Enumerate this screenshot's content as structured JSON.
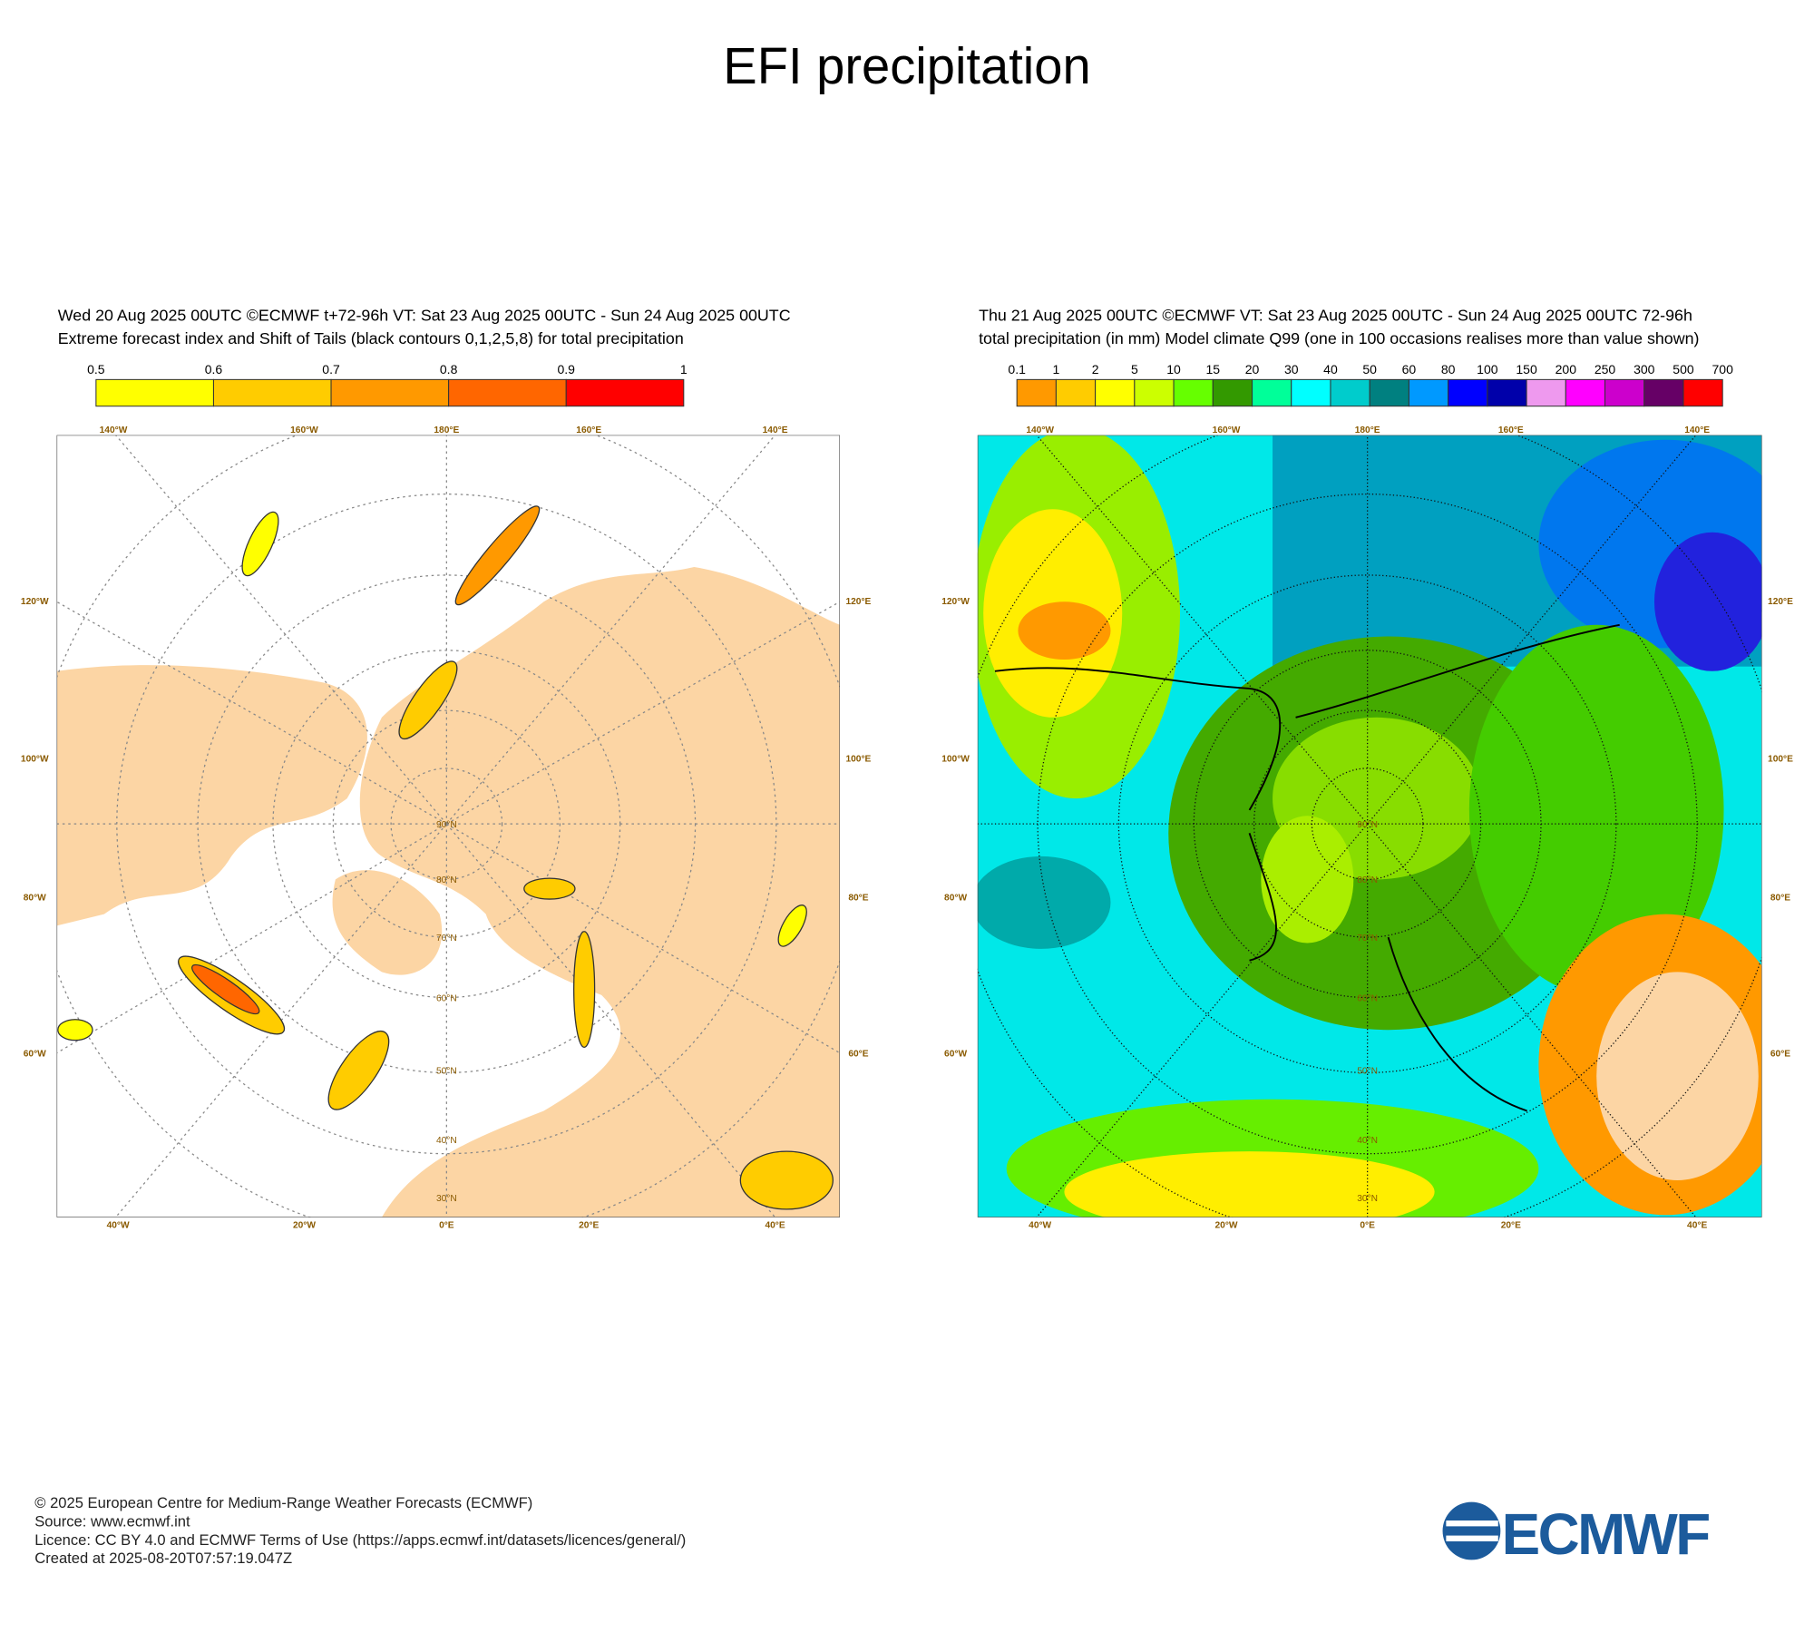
{
  "title": "EFI precipitation",
  "panels": [
    {
      "header": [
        "Wed 20 Aug 2025 00UTC ©ECMWF t+72-96h  VT: Sat 23 Aug 2025 00UTC - Sun 24 Aug 2025 00UTC",
        "Extreme forecast index and Shift of Tails (black contours 0,1,2,5,8) for total precipitation"
      ],
      "colorbar": {
        "labels": [
          0.5,
          0.6,
          0.7,
          0.8,
          0.9,
          1
        ],
        "colors": [
          "#ffff00",
          "#ffcc00",
          "#ff9900",
          "#ff6600",
          "#ff0000"
        ]
      },
      "lon_top": [
        "140°W",
        "160°W",
        "180°E",
        "160°E",
        "140°E"
      ],
      "lon_bottom": [
        "40°W",
        "20°W",
        "0°E",
        "20°E",
        "40°E"
      ],
      "lat_left": [
        "120°W",
        "100°W",
        "80°W",
        "60°W"
      ],
      "lat_right": [
        "120°E",
        "100°E",
        "80°E",
        "60°E"
      ],
      "lat_rings": [
        "90°N",
        "80°N",
        "70°N",
        "60°N",
        "50°N",
        "40°N",
        "30°N"
      ]
    },
    {
      "header": [
        "Thu 21 Aug 2025 00UTC ©ECMWF VT: Sat 23 Aug 2025 00UTC - Sun 24 Aug 2025 00UTC   72-96h",
        "total precipitation (in mm)  Model climate Q99 (one in 100 occasions realises more than value shown)"
      ],
      "colorbar": {
        "labels": [
          0.1,
          1,
          2,
          5,
          10,
          15,
          20,
          30,
          40,
          50,
          60,
          80,
          100,
          150,
          200,
          250,
          300,
          500,
          700
        ],
        "colors": [
          "#ff9900",
          "#ffcc00",
          "#ffff00",
          "#ccff00",
          "#66ff00",
          "#339900",
          "#00ff99",
          "#00ffff",
          "#00cccc",
          "#008080",
          "#0099ff",
          "#0000ff",
          "#0000aa",
          "#ee99ee",
          "#ff00ff",
          "#cc00cc",
          "#660066",
          "#ff0000"
        ]
      },
      "lon_top": [
        "140°W",
        "160°W",
        "180°E",
        "160°E",
        "140°E"
      ],
      "lon_bottom": [
        "40°W",
        "20°W",
        "0°E",
        "20°E",
        "40°E"
      ],
      "lat_left": [
        "120°W",
        "100°W",
        "80°W",
        "60°W"
      ],
      "lat_right": [
        "120°E",
        "100°E",
        "80°E",
        "60°E"
      ],
      "lat_rings": [
        "90°N",
        "80°N",
        "70°N",
        "60°N",
        "50°N",
        "40°N",
        "30°N"
      ]
    }
  ],
  "footer": [
    "© 2025 European Centre for Medium-Range Weather Forecasts (ECMWF)",
    "Source: www.ecmwf.int",
    "Licence: CC BY 4.0 and ECMWF Terms of Use (https://apps.ecmwf.int/datasets/licences/general/)",
    "Created at 2025-08-20T07:57:19.047Z"
  ],
  "logo": "ECMWF"
}
